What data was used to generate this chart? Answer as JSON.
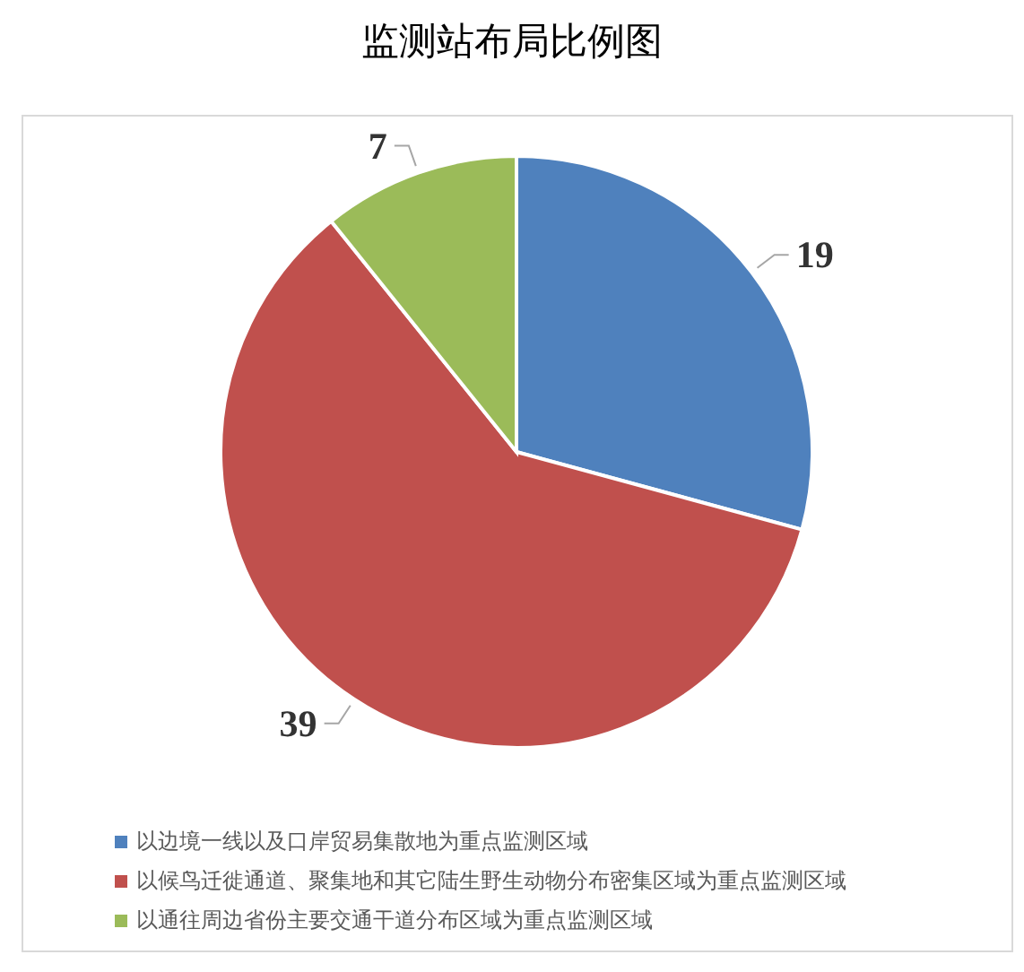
{
  "chart_data": {
    "type": "pie",
    "title": "监测站布局比例图",
    "categories": [
      "以边境一线以及口岸贸易集散地为重点监测区域",
      "以候鸟迁徙通道、聚集地和其它陆生野生动物分布密集区域为重点监测区域",
      "以通往周边省份主要交通干道分布区域为重点监测区域"
    ],
    "values": [
      19,
      39,
      7
    ],
    "colors": [
      "#4f81bd",
      "#c0504d",
      "#9bbb59"
    ],
    "data_labels": true,
    "legend": "bottom"
  }
}
